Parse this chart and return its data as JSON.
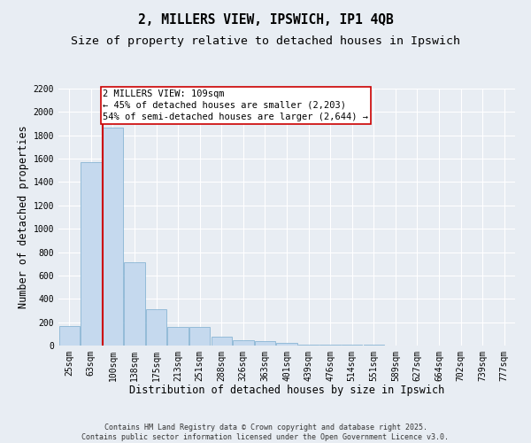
{
  "title": "2, MILLERS VIEW, IPSWICH, IP1 4QB",
  "subtitle": "Size of property relative to detached houses in Ipswich",
  "xlabel": "Distribution of detached houses by size in Ipswich",
  "ylabel": "Number of detached properties",
  "categories": [
    "25sqm",
    "63sqm",
    "100sqm",
    "138sqm",
    "175sqm",
    "213sqm",
    "251sqm",
    "288sqm",
    "326sqm",
    "363sqm",
    "401sqm",
    "439sqm",
    "476sqm",
    "514sqm",
    "551sqm",
    "589sqm",
    "627sqm",
    "664sqm",
    "702sqm",
    "739sqm",
    "777sqm"
  ],
  "values": [
    170,
    1570,
    1870,
    710,
    310,
    160,
    160,
    75,
    45,
    35,
    25,
    8,
    8,
    8,
    4,
    3,
    2,
    1,
    1,
    0,
    0
  ],
  "bar_color": "#c5d9ee",
  "bar_edgecolor": "#7aacce",
  "background_color": "#e8edf3",
  "grid_color": "#ffffff",
  "vline_color": "#cc0000",
  "vline_bar_index": 2,
  "annotation_text": "2 MILLERS VIEW: 109sqm\n← 45% of detached houses are smaller (2,203)\n54% of semi-detached houses are larger (2,644) →",
  "annotation_box_edgecolor": "#cc0000",
  "annotation_box_facecolor": "#ffffff",
  "ylim": [
    0,
    2200
  ],
  "yticks": [
    0,
    200,
    400,
    600,
    800,
    1000,
    1200,
    1400,
    1600,
    1800,
    2000,
    2200
  ],
  "footer_text": "Contains HM Land Registry data © Crown copyright and database right 2025.\nContains public sector information licensed under the Open Government Licence v3.0.",
  "title_fontsize": 10.5,
  "subtitle_fontsize": 9.5,
  "axis_label_fontsize": 8.5,
  "tick_fontsize": 7,
  "annotation_fontsize": 7.5,
  "footer_fontsize": 6
}
